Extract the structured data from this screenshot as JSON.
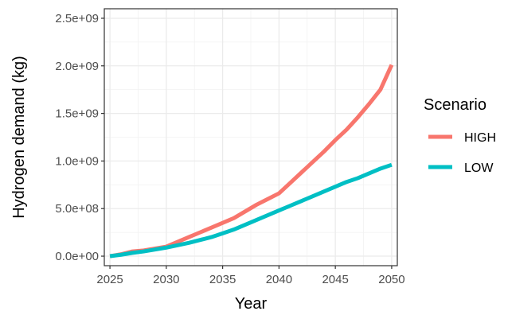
{
  "chart_data": {
    "type": "line",
    "title": "",
    "xlabel": "Year",
    "ylabel": "Hydrogen demand (kg)",
    "x": [
      2025,
      2026,
      2027,
      2028,
      2029,
      2030,
      2031,
      2032,
      2033,
      2034,
      2035,
      2036,
      2037,
      2038,
      2039,
      2040,
      2041,
      2042,
      2043,
      2044,
      2045,
      2046,
      2047,
      2048,
      2049,
      2050
    ],
    "series": [
      {
        "name": "HIGH",
        "color": "#F8766D",
        "values": [
          0.0,
          20000000,
          50000000,
          60000000,
          80000000,
          100000000,
          150000000,
          200000000,
          250000000,
          300000000,
          350000000,
          400000000,
          470000000,
          540000000,
          600000000,
          660000000,
          770000000,
          880000000,
          990000000,
          1100000000,
          1220000000,
          1330000000,
          1460000000,
          1600000000,
          1750000000,
          2010000000
        ]
      },
      {
        "name": "LOW",
        "color": "#00BFC4",
        "values": [
          0.0,
          15000000,
          35000000,
          50000000,
          70000000,
          90000000,
          115000000,
          140000000,
          170000000,
          200000000,
          240000000,
          280000000,
          330000000,
          380000000,
          430000000,
          480000000,
          530000000,
          580000000,
          630000000,
          680000000,
          730000000,
          780000000,
          820000000,
          870000000,
          920000000,
          960000000
        ]
      }
    ],
    "xlim": [
      2024.5,
      2050.5
    ],
    "ylim": [
      -100000000,
      2600000000
    ],
    "x_ticks": [
      2025,
      2030,
      2035,
      2040,
      2045,
      2050
    ],
    "x_tick_labels": [
      "2025",
      "2030",
      "2035",
      "2040",
      "2045",
      "2050"
    ],
    "y_ticks": [
      0,
      500000000,
      1000000000,
      1500000000,
      2000000000,
      2500000000
    ],
    "y_tick_labels": [
      "0.0e+00",
      "5.0e+08",
      "1.0e+09",
      "1.5e+09",
      "2.0e+09",
      "2.5e+09"
    ],
    "grid": true,
    "legend": {
      "title": "Scenario",
      "placement": "right"
    }
  }
}
